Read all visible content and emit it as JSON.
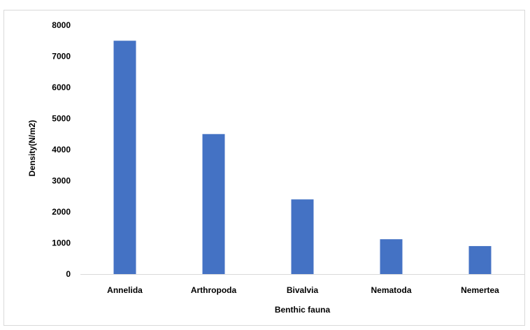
{
  "chart_data": {
    "type": "bar",
    "title": "",
    "xlabel": "Benthic fauna",
    "ylabel": "Density(N/m2)",
    "categories": [
      "Annelida",
      "Arthropoda",
      "Bivalvia",
      "Nematoda",
      "Nemertea"
    ],
    "values": [
      7500,
      4500,
      2400,
      1120,
      900
    ],
    "ylim": [
      0,
      8000
    ],
    "yticks": [
      0,
      1000,
      2000,
      3000,
      4000,
      5000,
      6000,
      7000,
      8000
    ],
    "grid": false,
    "legend": "none",
    "bar_color": "#4472c4",
    "axis_color": "#d9d9d9"
  }
}
